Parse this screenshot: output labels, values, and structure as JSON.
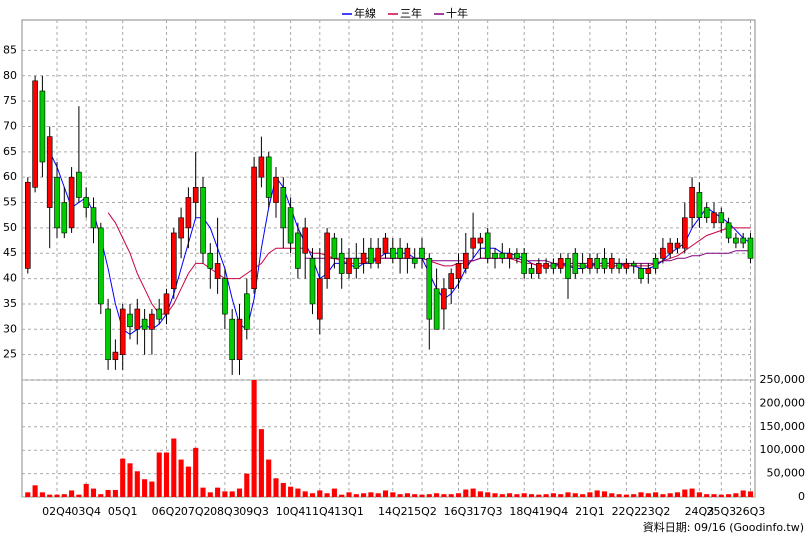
{
  "chart_data": {
    "type": "candlestick",
    "categories": [
      null,
      null,
      null,
      null,
      "02Q4",
      null,
      null,
      null,
      "03Q4",
      null,
      null,
      null,
      null,
      "05Q1",
      null,
      null,
      null,
      null,
      null,
      "06Q2",
      null,
      null,
      null,
      "07Q2",
      null,
      null,
      null,
      "08Q3",
      null,
      null,
      null,
      "09Q3",
      null,
      null,
      null,
      null,
      "10Q4",
      null,
      null,
      null,
      "11Q4",
      null,
      null,
      null,
      "13Q1",
      null,
      null,
      null,
      null,
      null,
      "14Q2",
      null,
      null,
      null,
      "15Q2",
      null,
      null,
      null,
      null,
      "16Q3",
      null,
      null,
      null,
      "17Q3",
      null,
      null,
      null,
      null,
      "18Q4",
      null,
      null,
      null,
      "19Q4",
      null,
      null,
      null,
      null,
      "21Q1",
      null,
      null,
      null,
      null,
      "22Q2",
      null,
      null,
      null,
      "23Q2",
      null,
      null,
      null,
      null,
      null,
      "24Q3",
      null,
      null,
      "25Q3",
      null,
      null,
      null,
      "26Q3"
    ],
    "open": [
      42,
      58,
      77,
      54,
      60,
      55,
      50,
      61,
      56,
      54,
      50,
      34,
      24,
      25,
      33,
      30,
      32,
      30,
      34,
      33,
      38,
      48,
      50,
      55,
      58,
      45,
      40,
      40,
      32,
      24,
      37,
      38,
      60,
      64,
      55,
      58,
      54,
      49,
      45,
      44,
      32,
      40,
      48,
      45,
      41,
      44,
      43,
      46,
      43,
      45,
      46,
      46,
      44,
      44,
      46,
      44,
      38,
      34,
      38,
      40,
      42,
      46,
      47,
      49,
      45,
      45,
      44,
      45,
      45,
      42,
      41,
      42,
      43,
      42,
      44,
      45,
      43,
      42,
      44,
      44,
      42,
      43,
      42,
      43,
      42,
      41,
      44,
      44,
      45,
      46,
      46,
      52,
      57,
      54,
      51,
      53,
      51,
      48,
      48,
      48
    ],
    "high": [
      60,
      80,
      80,
      70,
      63,
      58,
      62,
      74,
      58,
      56,
      51,
      36,
      28,
      35,
      35,
      36,
      34,
      34,
      36,
      38,
      50,
      54,
      58,
      65,
      60,
      47,
      52,
      42,
      34,
      35,
      40,
      64,
      68,
      65,
      62,
      60,
      56,
      51,
      52,
      46,
      46,
      50,
      49,
      48,
      46,
      47,
      48,
      48,
      48,
      49,
      48,
      48,
      47,
      46,
      48,
      45,
      42,
      40,
      42,
      45,
      49,
      53,
      49,
      50,
      46,
      47,
      46,
      46,
      46,
      43,
      44,
      44,
      44,
      45,
      45,
      46,
      45,
      45,
      45,
      46,
      45,
      44,
      44,
      43.5,
      43,
      43,
      45,
      48,
      48,
      48,
      55,
      60,
      59,
      55,
      55,
      54,
      52,
      49,
      49,
      49
    ],
    "low": [
      41,
      57,
      60,
      46,
      48,
      48,
      49,
      55,
      52,
      47,
      33,
      22,
      22,
      22,
      28,
      27,
      25,
      25,
      31,
      31,
      36,
      44,
      46,
      52,
      43,
      38,
      37,
      30,
      21,
      21,
      28,
      37,
      58,
      54,
      52,
      46,
      45,
      40,
      40,
      33,
      29,
      38,
      42,
      38,
      40,
      40,
      41,
      42,
      42,
      44,
      43,
      41,
      41,
      42,
      42,
      26,
      30,
      30,
      35,
      38,
      41,
      44,
      44,
      43,
      42,
      43,
      42,
      43,
      40,
      40,
      40,
      41,
      41,
      41,
      36,
      40,
      41,
      41,
      41,
      41,
      41,
      41,
      41,
      41,
      39,
      39,
      41,
      43,
      44,
      45,
      45,
      50,
      50,
      51,
      50,
      49,
      47,
      46,
      46,
      43
    ],
    "close": [
      59,
      79,
      63,
      68,
      50,
      49,
      60,
      56,
      54,
      50,
      35,
      24,
      25.5,
      34,
      30.5,
      34,
      30,
      33,
      32,
      37,
      49,
      52,
      56,
      58,
      45,
      42,
      43,
      33,
      24,
      32,
      30,
      62,
      64,
      56,
      60,
      50,
      47,
      42,
      50,
      35,
      40,
      49,
      44,
      41,
      44,
      42,
      45,
      43,
      46,
      48,
      44,
      44,
      46,
      43,
      44,
      32,
      30,
      38,
      41,
      43,
      45,
      48,
      48,
      44,
      44,
      44,
      45,
      44,
      41,
      41,
      43,
      43,
      42,
      44,
      40,
      41,
      42,
      44,
      42,
      42,
      44,
      42,
      43,
      42.5,
      40,
      42,
      42,
      46,
      47,
      47,
      52,
      58,
      52,
      52,
      53,
      51,
      48,
      47,
      47,
      44
    ],
    "up_color": "#ff0000",
    "down_color": "#00cc00",
    "series": [
      {
        "name": "年線",
        "color": "#0000ff",
        "values": [
          null,
          null,
          null,
          65,
          62,
          58,
          54,
          55,
          56,
          53,
          48,
          42,
          35,
          30,
          29,
          30,
          31,
          30,
          31,
          33,
          37,
          42,
          47,
          52,
          52,
          50,
          46,
          42,
          36,
          31,
          30,
          36,
          46,
          54,
          60,
          58,
          54,
          50,
          47,
          44,
          40,
          41,
          43,
          43,
          43,
          42,
          43,
          43,
          44,
          45,
          45,
          45,
          45,
          44,
          44,
          41,
          38,
          36,
          37,
          39,
          42,
          44,
          46,
          46,
          46,
          45,
          45,
          44.5,
          44,
          43,
          42.5,
          42.5,
          42.5,
          43,
          42.5,
          42,
          42,
          42.5,
          43,
          43,
          43,
          43,
          42.5,
          42.5,
          42,
          42,
          42.5,
          43.5,
          45,
          46,
          47,
          50,
          52,
          54,
          53,
          52,
          51,
          49.5,
          48,
          47
        ]
      },
      {
        "name": "三年",
        "color": "#cc0044",
        "values": [
          null,
          null,
          null,
          null,
          null,
          null,
          null,
          null,
          null,
          null,
          null,
          53,
          51,
          48,
          45,
          41,
          38,
          35,
          33,
          33,
          35,
          38,
          41,
          43,
          43,
          42,
          41,
          40,
          40,
          40,
          41,
          42,
          43,
          45,
          46,
          46,
          46,
          46,
          46,
          45,
          45,
          44.5,
          44,
          43.5,
          43,
          43,
          43,
          43.5,
          44,
          44,
          44,
          44,
          44,
          44,
          44,
          43.5,
          43,
          42.5,
          42.5,
          43,
          43,
          43.5,
          44,
          44,
          44,
          44,
          44,
          43.5,
          43,
          43,
          42.5,
          42.5,
          42.5,
          42.5,
          42.5,
          42.5,
          42.5,
          42.5,
          42.5,
          42.5,
          42.5,
          42.5,
          42.5,
          42.5,
          42.5,
          42.5,
          43,
          43.5,
          44,
          44.5,
          45.5,
          46.5,
          47.5,
          48.5,
          49,
          49.5,
          50,
          50,
          50,
          50
        ]
      },
      {
        "name": "十年",
        "color": "#800080",
        "values": [
          null,
          null,
          null,
          null,
          null,
          null,
          null,
          null,
          null,
          null,
          null,
          null,
          null,
          null,
          null,
          null,
          null,
          null,
          null,
          null,
          null,
          null,
          null,
          null,
          null,
          null,
          null,
          null,
          null,
          null,
          null,
          null,
          null,
          null,
          null,
          null,
          null,
          null,
          44,
          44,
          44,
          44,
          44,
          44,
          44,
          44,
          44,
          44,
          44,
          44,
          44,
          44,
          44,
          44,
          44,
          43.5,
          43.5,
          43.5,
          43.5,
          43.5,
          43.5,
          43.5,
          44,
          44,
          44,
          44,
          44,
          44,
          43.5,
          43.5,
          43.5,
          43.5,
          43,
          43,
          43,
          43,
          43,
          43,
          43,
          43,
          43,
          43,
          43,
          43,
          43,
          43,
          43,
          43.5,
          43.5,
          44,
          44,
          44.5,
          44.5,
          45,
          45,
          45,
          45,
          45.5,
          45.5,
          45.5
        ]
      }
    ],
    "ylim": [
      20,
      91
    ],
    "yticks": [
      25,
      30,
      35,
      40,
      45,
      50,
      55,
      60,
      65,
      70,
      75,
      80,
      85
    ],
    "volume": [
      10000,
      25000,
      10000,
      5000,
      5000,
      6000,
      14000,
      5000,
      28000,
      18000,
      6000,
      15000,
      15000,
      82000,
      72000,
      55000,
      38000,
      33000,
      95000,
      95000,
      125000,
      80000,
      65000,
      105000,
      20000,
      10000,
      20000,
      12000,
      12000,
      18000,
      50000,
      250000,
      145000,
      80000,
      40000,
      30000,
      22000,
      18000,
      12000,
      8000,
      14000,
      8000,
      18000,
      5000,
      10000,
      6000,
      8000,
      10000,
      8000,
      14000,
      10000,
      6000,
      8000,
      6000,
      5000,
      6000,
      8000,
      6000,
      6000,
      8000,
      16000,
      18000,
      12000,
      10000,
      8000,
      6000,
      8000,
      6000,
      8000,
      6000,
      5000,
      6000,
      8000,
      6000,
      10000,
      8000,
      6000,
      10000,
      14000,
      12000,
      8000,
      6000,
      5000,
      6000,
      10000,
      8000,
      10000,
      6000,
      8000,
      10000,
      16000,
      18000,
      10000,
      6000,
      6000,
      5000,
      6000,
      8000,
      14000,
      12000
    ],
    "volume_color": "#ff0000",
    "volume_ylim": [
      0,
      250000
    ],
    "volume_yticks": [
      0,
      {
        "value": 50000,
        "label": "50,000"
      },
      {
        "value": 100000,
        "label": "100,000"
      },
      {
        "value": 150000,
        "label": "150,000"
      },
      {
        "value": 200000,
        "label": "200,000"
      },
      {
        "value": 250000,
        "label": "250,000"
      }
    ],
    "grid": true,
    "footnote": "資料日期: 09/16 (Goodinfo.tw)"
  }
}
